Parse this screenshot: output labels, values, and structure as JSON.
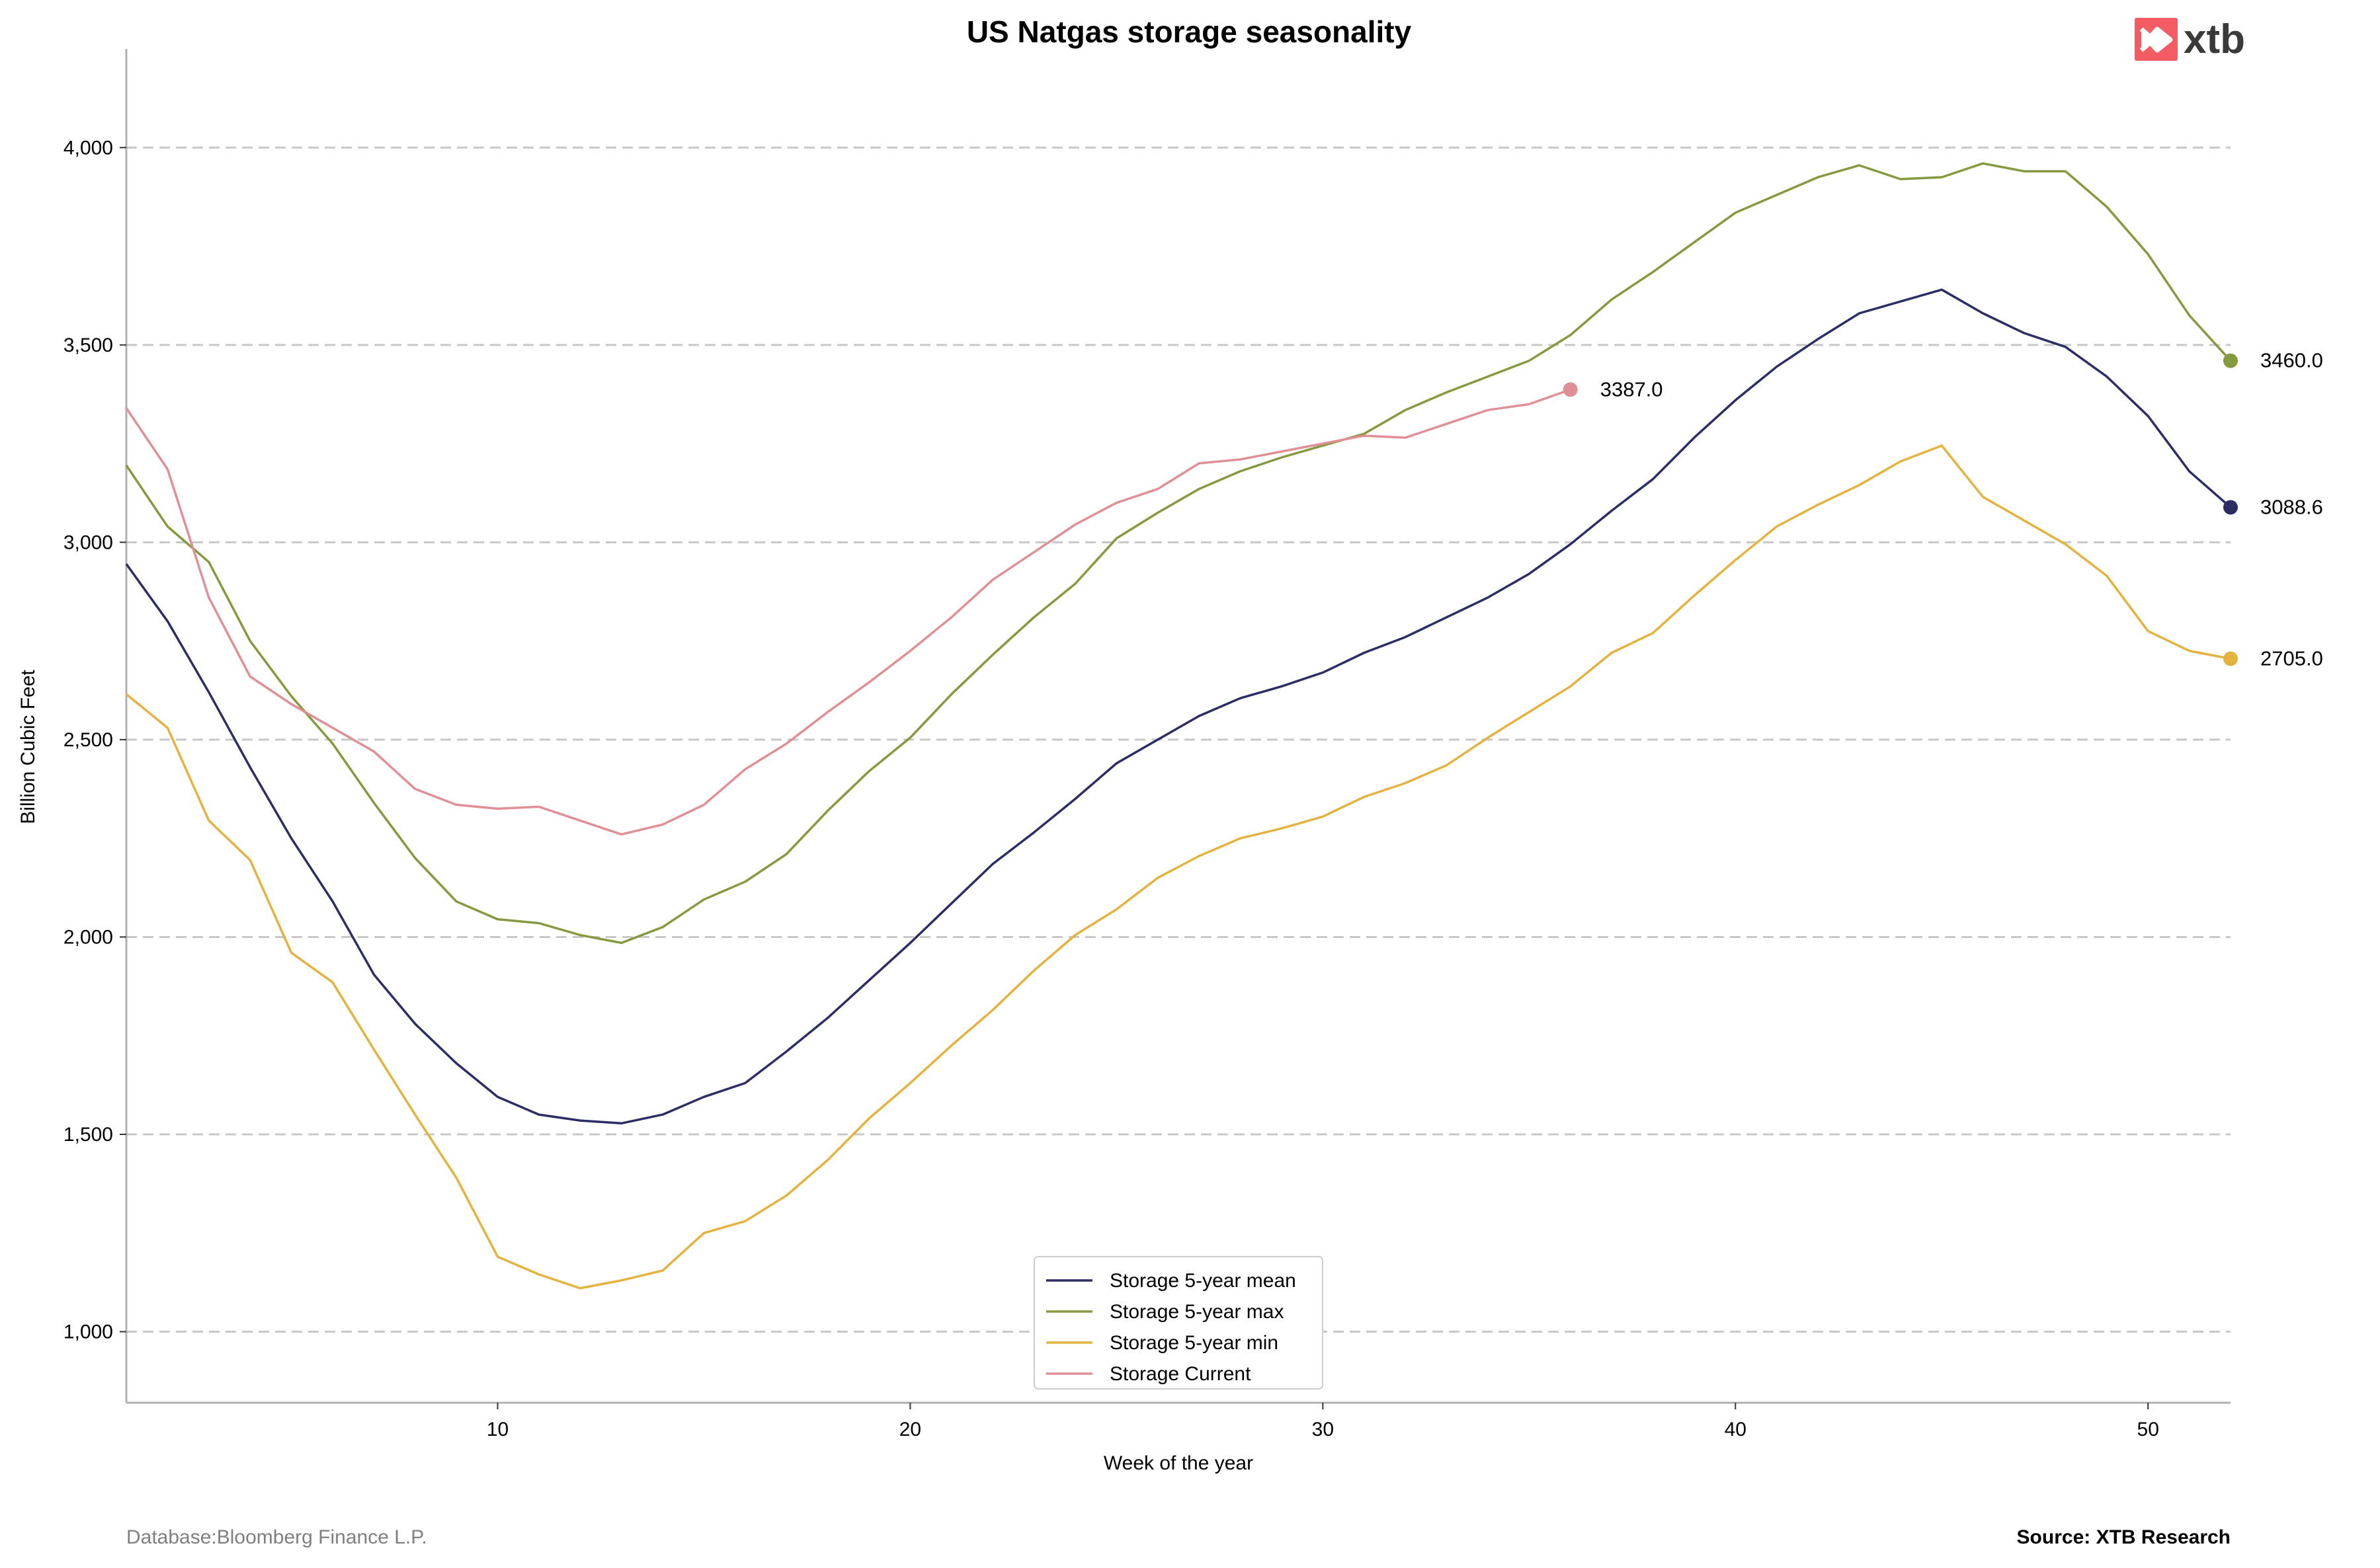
{
  "chart_data": {
    "type": "line",
    "title": "US Natgas storage seasonality",
    "xlabel": "Week of the year",
    "ylabel": "Billion Cubic Feet",
    "xlim": [
      1,
      52
    ],
    "ylim": [
      820,
      4250
    ],
    "xticks": [
      10,
      20,
      30,
      40,
      50
    ],
    "yticks": [
      1000,
      1500,
      2000,
      2500,
      3000,
      3500,
      4000
    ],
    "ytick_labels": [
      "1,000",
      "1,500",
      "2,000",
      "2,500",
      "3,000",
      "3,500",
      "4,000"
    ],
    "grid": "horizontal dashed",
    "legend_position": "bottom-center",
    "series": [
      {
        "name": "Storage 5-year mean",
        "color": "#2b2d64",
        "x": [
          1,
          2,
          3,
          4,
          5,
          6,
          7,
          8,
          9,
          10,
          11,
          12,
          13,
          14,
          15,
          16,
          17,
          18,
          19,
          20,
          21,
          22,
          23,
          24,
          25,
          26,
          27,
          28,
          29,
          30,
          31,
          32,
          33,
          34,
          35,
          36,
          37,
          38,
          39,
          40,
          41,
          42,
          43,
          44,
          45,
          46,
          47,
          48,
          49,
          50,
          51,
          52
        ],
        "values": [
          2945,
          2800,
          2620,
          2430,
          2250,
          2090,
          1905,
          1780,
          1680,
          1595,
          1550,
          1535,
          1528,
          1550,
          1595,
          1630,
          1710,
          1795,
          1890,
          1985,
          2085,
          2185,
          2265,
          2350,
          2440,
          2500,
          2560,
          2605,
          2635,
          2670,
          2720,
          2760,
          2810,
          2860,
          2920,
          2995,
          3080,
          3160,
          3265,
          3360,
          3445,
          3515,
          3580,
          3610,
          3640,
          3580,
          3530,
          3495,
          3420,
          3320,
          3180,
          3088.6
        ],
        "end_label": "3088.6"
      },
      {
        "name": "Storage 5-year max",
        "color": "#85993f",
        "x": [
          1,
          2,
          3,
          4,
          5,
          6,
          7,
          8,
          9,
          10,
          11,
          12,
          13,
          14,
          15,
          16,
          17,
          18,
          19,
          20,
          21,
          22,
          23,
          24,
          25,
          26,
          27,
          28,
          29,
          30,
          31,
          32,
          33,
          34,
          35,
          36,
          37,
          38,
          39,
          40,
          41,
          42,
          43,
          44,
          45,
          46,
          47,
          48,
          49,
          50,
          51,
          52
        ],
        "values": [
          3195,
          3040,
          2950,
          2750,
          2610,
          2490,
          2340,
          2200,
          2090,
          2045,
          2035,
          2005,
          1985,
          2025,
          2095,
          2140,
          2210,
          2320,
          2420,
          2505,
          2615,
          2715,
          2810,
          2895,
          3010,
          3075,
          3135,
          3180,
          3215,
          3245,
          3275,
          3335,
          3380,
          3420,
          3460,
          3525,
          3615,
          3685,
          3760,
          3835,
          3880,
          3925,
          3955,
          3920,
          3925,
          3960,
          3940,
          3940,
          3850,
          3730,
          3575,
          3460
        ],
        "end_label": "3460.0"
      },
      {
        "name": "Storage 5-year min",
        "color": "#e4b23f",
        "x": [
          1,
          2,
          3,
          4,
          5,
          6,
          7,
          8,
          9,
          10,
          11,
          12,
          13,
          14,
          15,
          16,
          17,
          18,
          19,
          20,
          21,
          22,
          23,
          24,
          25,
          26,
          27,
          28,
          29,
          30,
          31,
          32,
          33,
          34,
          35,
          36,
          37,
          38,
          39,
          40,
          41,
          42,
          43,
          44,
          45,
          46,
          47,
          48,
          49,
          50,
          51,
          52
        ],
        "values": [
          2615,
          2530,
          2295,
          2195,
          1960,
          1885,
          1715,
          1550,
          1390,
          1190,
          1145,
          1110,
          1130,
          1155,
          1250,
          1280,
          1345,
          1435,
          1540,
          1630,
          1725,
          1815,
          1915,
          2005,
          2070,
          2150,
          2205,
          2250,
          2275,
          2305,
          2355,
          2390,
          2435,
          2505,
          2570,
          2635,
          2720,
          2770,
          2865,
          2955,
          3040,
          3095,
          3145,
          3205,
          3245,
          3115,
          3055,
          2995,
          2915,
          2775,
          2725,
          2705
        ],
        "end_label": "2705.0"
      },
      {
        "name": "Storage Current",
        "color": "#e08f95",
        "x": [
          1,
          2,
          3,
          4,
          5,
          6,
          7,
          8,
          9,
          10,
          11,
          12,
          13,
          14,
          15,
          16,
          17,
          18,
          19,
          20,
          21,
          22,
          23,
          24,
          25,
          26,
          27,
          28,
          29,
          30,
          31,
          32,
          33,
          34,
          35,
          36
        ],
        "values": [
          3340,
          3185,
          2860,
          2660,
          2590,
          2530,
          2470,
          2375,
          2335,
          2325,
          2330,
          2295,
          2260,
          2285,
          2335,
          2425,
          2490,
          2570,
          2645,
          2725,
          2810,
          2905,
          2975,
          3045,
          3100,
          3135,
          3200,
          3210,
          3230,
          3250,
          3270,
          3265,
          3300,
          3335,
          3350,
          3387
        ],
        "end_label": "3387.0"
      }
    ]
  },
  "brand": {
    "logo_text": "xtb",
    "logo_color": "#f25c62"
  },
  "footer": {
    "left": "Database:Bloomberg Finance L.P.",
    "right": "Source: XTB Research"
  }
}
